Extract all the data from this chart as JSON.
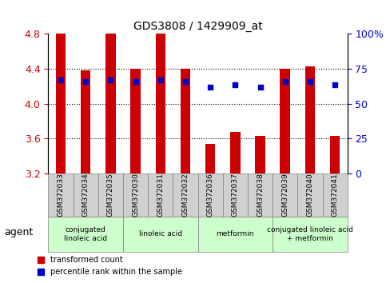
{
  "title": "GDS3808 / 1429909_at",
  "samples": [
    "GSM372033",
    "GSM372034",
    "GSM372035",
    "GSM372030",
    "GSM372031",
    "GSM372032",
    "GSM372036",
    "GSM372037",
    "GSM372038",
    "GSM372039",
    "GSM372040",
    "GSM372041"
  ],
  "bar_values": [
    4.8,
    4.38,
    4.8,
    4.4,
    4.8,
    4.4,
    3.54,
    3.68,
    3.63,
    4.4,
    4.43,
    3.63
  ],
  "percentile_values": [
    4.27,
    4.25,
    4.27,
    4.25,
    4.27,
    4.25,
    4.19,
    4.22,
    4.19,
    4.25,
    4.25,
    4.22
  ],
  "y_min": 3.2,
  "y_max": 4.8,
  "y_ticks": [
    3.2,
    3.6,
    4.0,
    4.4,
    4.8
  ],
  "y_right_ticks": [
    0,
    25,
    50,
    75,
    100
  ],
  "y_right_labels": [
    "0",
    "25",
    "50",
    "75",
    "100%"
  ],
  "bar_color": "#cc0000",
  "dot_color": "#0000cc",
  "grid_color": "#000000",
  "left_tick_color": "#cc0000",
  "right_tick_color": "#0000cc",
  "agent_groups": [
    {
      "label": "conjugated\nlinoleic acid",
      "start": 0,
      "end": 3,
      "color": "#ccffcc"
    },
    {
      "label": "linoleic acid",
      "start": 3,
      "end": 6,
      "color": "#ccffcc"
    },
    {
      "label": "metformin",
      "start": 6,
      "end": 9,
      "color": "#ccffcc"
    },
    {
      "label": "conjugated linoleic acid\n+ metformin",
      "start": 9,
      "end": 12,
      "color": "#ccffcc"
    }
  ],
  "legend_items": [
    {
      "label": "transformed count",
      "color": "#cc0000",
      "marker": "s"
    },
    {
      "label": "percentile rank within the sample",
      "color": "#0000cc",
      "marker": "s"
    }
  ],
  "agent_label": "agent",
  "background_color": "#ffffff",
  "bar_width": 0.4
}
